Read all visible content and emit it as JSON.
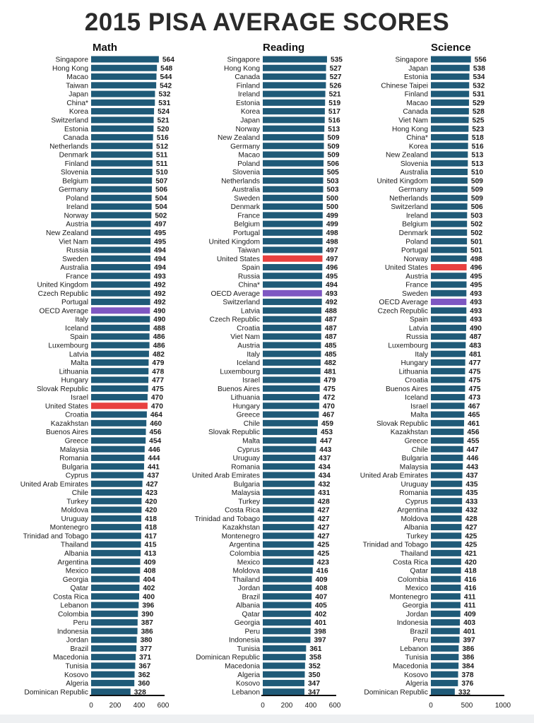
{
  "title": "2015 PISA AVERAGE SCORES",
  "colors": {
    "bar": "#1f5a78",
    "highlight_us": "#e8403f",
    "highlight_oecd": "#7e57c2",
    "text": "#1a1a1a",
    "axis": "#111111"
  },
  "chart_data": [
    {
      "type": "bar",
      "orientation": "horizontal",
      "title": "Math",
      "xlim": [
        0,
        600
      ],
      "xticks": [
        0,
        200,
        400,
        600
      ],
      "categories": [
        "Singapore",
        "Hong Kong",
        "Macao",
        "Taiwan",
        "Japan",
        "China*",
        "Korea",
        "Switzerland",
        "Estonia",
        "Canada",
        "Netherlands",
        "Denmark",
        "Finland",
        "Slovenia",
        "Belgium",
        "Germany",
        "Poland",
        "Ireland",
        "Norway",
        "Austria",
        "New Zealand",
        "Viet Nam",
        "Russia",
        "Sweden",
        "Australia",
        "France",
        "United Kingdom",
        "Czech Republic",
        "Portugal",
        "OECD Average",
        "Italy",
        "Iceland",
        "Spain",
        "Luxembourg",
        "Latvia",
        "Malta",
        "Lithuania",
        "Hungary",
        "Slovak Republic",
        "Israel",
        "United States",
        "Croatia",
        "Kazakhstan",
        "Buenos Aires",
        "Greece",
        "Malaysia",
        "Romania",
        "Bulgaria",
        "Cyprus",
        "United Arab Emirates",
        "Chile",
        "Turkey",
        "Moldova",
        "Uruguay",
        "Montenegro",
        "Trinidad and Tobago",
        "Thailand",
        "Albania",
        "Argentina",
        "Mexico",
        "Georgia",
        "Qatar",
        "Costa Rica",
        "Lebanon",
        "Colombia",
        "Peru",
        "Indonesia",
        "Jordan",
        "Brazil",
        "Macedonia",
        "Tunisia",
        "Kosovo",
        "Algeria",
        "Dominican Republic"
      ],
      "values": [
        564,
        548,
        544,
        542,
        532,
        531,
        524,
        521,
        520,
        516,
        512,
        511,
        511,
        510,
        507,
        506,
        504,
        504,
        502,
        497,
        495,
        495,
        494,
        494,
        494,
        493,
        492,
        492,
        492,
        490,
        490,
        488,
        486,
        486,
        482,
        479,
        478,
        477,
        475,
        470,
        470,
        464,
        460,
        456,
        454,
        446,
        444,
        441,
        437,
        427,
        423,
        420,
        420,
        418,
        418,
        417,
        415,
        413,
        409,
        408,
        404,
        402,
        400,
        396,
        390,
        387,
        386,
        380,
        377,
        371,
        367,
        362,
        360,
        328
      ]
    },
    {
      "type": "bar",
      "orientation": "horizontal",
      "title": "Reading",
      "xlim": [
        0,
        600
      ],
      "xticks": [
        0,
        200,
        400,
        600
      ],
      "categories": [
        "Singapore",
        "Hong Kong",
        "Canada",
        "Finland",
        "Ireland",
        "Estonia",
        "Korea",
        "Japan",
        "Norway",
        "New Zealand",
        "Germany",
        "Macao",
        "Poland",
        "Slovenia",
        "Netherlands",
        "Australia",
        "Sweden",
        "Denmark",
        "France",
        "Belgium",
        "Portugal",
        "United Kingdom",
        "Taiwan",
        "United States",
        "Spain",
        "Russia",
        "China*",
        "OECD Average",
        "Switzerland",
        "Latvia",
        "Czech Republic",
        "Croatia",
        "Viet Nam",
        "Austria",
        "Italy",
        "Iceland",
        "Luxembourg",
        "Israel",
        "Buenos Aires",
        "Lithuania",
        "Hungary",
        "Greece",
        "Chile",
        "Slovak Republic",
        "Malta",
        "Cyprus",
        "Uruguay",
        "Romania",
        "United Arab Emirates",
        "Bulgaria",
        "Malaysia",
        "Turkey",
        "Costa Rica",
        "Trinidad and Tobago",
        "Kazakhstan",
        "Montenegro",
        "Argentina",
        "Colombia",
        "Mexico",
        "Moldova",
        "Thailand",
        "Jordan",
        "Brazil",
        "Albania",
        "Qatar",
        "Georgia",
        "Peru",
        "Indonesia",
        "Tunisia",
        "Dominican Republic",
        "Macedonia",
        "Algeria",
        "Kosovo",
        "Lebanon"
      ],
      "values": [
        535,
        527,
        527,
        526,
        521,
        519,
        517,
        516,
        513,
        509,
        509,
        509,
        506,
        505,
        503,
        503,
        500,
        500,
        499,
        499,
        498,
        498,
        497,
        497,
        496,
        495,
        494,
        493,
        492,
        488,
        487,
        487,
        487,
        485,
        485,
        482,
        481,
        479,
        475,
        472,
        470,
        467,
        459,
        453,
        447,
        443,
        437,
        434,
        434,
        432,
        431,
        428,
        427,
        427,
        427,
        427,
        425,
        425,
        423,
        416,
        409,
        408,
        407,
        405,
        402,
        401,
        398,
        397,
        361,
        358,
        352,
        350,
        347,
        347
      ]
    },
    {
      "type": "bar",
      "orientation": "horizontal",
      "title": "Science",
      "xlim": [
        0,
        1000
      ],
      "xticks": [
        0,
        500,
        1000
      ],
      "categories": [
        "Singapore",
        "Japan",
        "Estonia",
        "Chinese Taipei",
        "Finland",
        "Macao",
        "Canada",
        "Viet Nam",
        "Hong Kong",
        "China*",
        "Korea",
        "New Zealand",
        "Slovenia",
        "Australia",
        "United Kingdom",
        "Germany",
        "Netherlands",
        "Switzerland",
        "Ireland",
        "Belgium",
        "Denmark",
        "Poland",
        "Portugal",
        "Norway",
        "United States",
        "Austria",
        "France",
        "Sweden",
        "OECD Average",
        "Czech Republic",
        "Spain",
        "Latvia",
        "Russia",
        "Luxembourg",
        "Italy",
        "Hungary",
        "Lithuania",
        "Croatia",
        "Buenos Aires",
        "Iceland",
        "Israel",
        "Malta",
        "Slovak Republic",
        "Kazakhstan",
        "Greece",
        "Chile",
        "Bulgaria",
        "Malaysia",
        "United Arab Emirates",
        "Uruguay",
        "Romania",
        "Cyprus",
        "Argentina",
        "Moldova",
        "Albania",
        "Turkey",
        "Trinidad and Tobago",
        "Thailand",
        "Costa Rica",
        "Qatar",
        "Colombia",
        "Mexico",
        "Montenegro",
        "Georgia",
        "Jordan",
        "Indonesia",
        "Brazil",
        "Peru",
        "Lebanon",
        "Tunisia",
        "Macedonia",
        "Kosovo",
        "Algeria",
        "Dominican Republic"
      ],
      "values": [
        556,
        538,
        534,
        532,
        531,
        529,
        528,
        525,
        523,
        518,
        516,
        513,
        513,
        510,
        509,
        509,
        509,
        506,
        503,
        502,
        502,
        501,
        501,
        498,
        496,
        495,
        495,
        493,
        493,
        493,
        493,
        490,
        487,
        483,
        481,
        477,
        475,
        475,
        475,
        473,
        467,
        465,
        461,
        456,
        455,
        447,
        446,
        443,
        437,
        435,
        435,
        433,
        432,
        428,
        427,
        425,
        425,
        421,
        420,
        418,
        416,
        416,
        411,
        411,
        409,
        403,
        401,
        397,
        386,
        386,
        384,
        378,
        376,
        332
      ]
    }
  ]
}
